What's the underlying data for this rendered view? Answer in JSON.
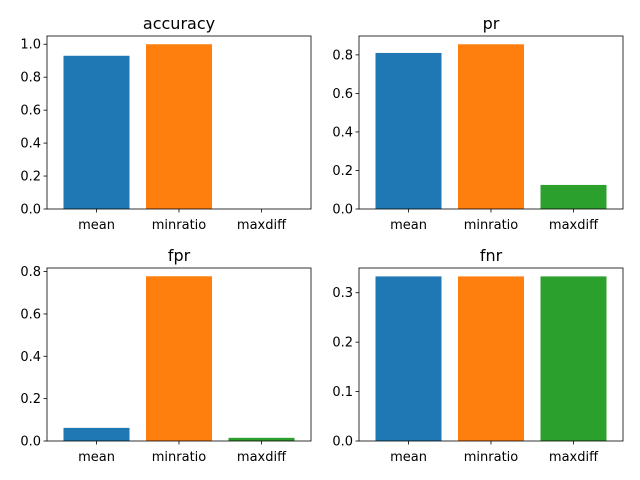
{
  "chart_data": [
    {
      "type": "bar",
      "title": "accuracy",
      "categories": [
        "mean",
        "minratio",
        "maxdiff"
      ],
      "values": [
        0.93,
        1.0,
        0.0
      ],
      "ylim": [
        0,
        1.05
      ],
      "yticks": [
        0.0,
        0.2,
        0.4,
        0.6,
        0.8,
        1.0
      ],
      "ytick_labels": [
        "0.0",
        "0.2",
        "0.4",
        "0.6",
        "0.8",
        "1.0"
      ],
      "colors": [
        "#1f77b4",
        "#ff7f0e",
        "#2ca02c"
      ],
      "grid": false,
      "xlabel": "",
      "ylabel": ""
    },
    {
      "type": "bar",
      "title": "pr",
      "categories": [
        "mean",
        "minratio",
        "maxdiff"
      ],
      "values": [
        0.81,
        0.855,
        0.125
      ],
      "ylim": [
        0,
        0.898
      ],
      "yticks": [
        0.0,
        0.2,
        0.4,
        0.6,
        0.8
      ],
      "ytick_labels": [
        "0.0",
        "0.2",
        "0.4",
        "0.6",
        "0.8"
      ],
      "colors": [
        "#1f77b4",
        "#ff7f0e",
        "#2ca02c"
      ],
      "grid": false,
      "xlabel": "",
      "ylabel": ""
    },
    {
      "type": "bar",
      "title": "fpr",
      "categories": [
        "mean",
        "minratio",
        "maxdiff"
      ],
      "values": [
        0.062,
        0.778,
        0.015
      ],
      "ylim": [
        0,
        0.817
      ],
      "yticks": [
        0.0,
        0.2,
        0.4,
        0.6,
        0.8
      ],
      "ytick_labels": [
        "0.0",
        "0.2",
        "0.4",
        "0.6",
        "0.8"
      ],
      "colors": [
        "#1f77b4",
        "#ff7f0e",
        "#2ca02c"
      ],
      "grid": false,
      "xlabel": "",
      "ylabel": ""
    },
    {
      "type": "bar",
      "title": "fnr",
      "categories": [
        "mean",
        "minratio",
        "maxdiff"
      ],
      "values": [
        0.333,
        0.333,
        0.333
      ],
      "ylim": [
        0,
        0.35
      ],
      "yticks": [
        0.0,
        0.1,
        0.2,
        0.3
      ],
      "ytick_labels": [
        "0.0",
        "0.1",
        "0.2",
        "0.3"
      ],
      "colors": [
        "#1f77b4",
        "#ff7f0e",
        "#2ca02c"
      ],
      "grid": false,
      "xlabel": "",
      "ylabel": ""
    }
  ]
}
